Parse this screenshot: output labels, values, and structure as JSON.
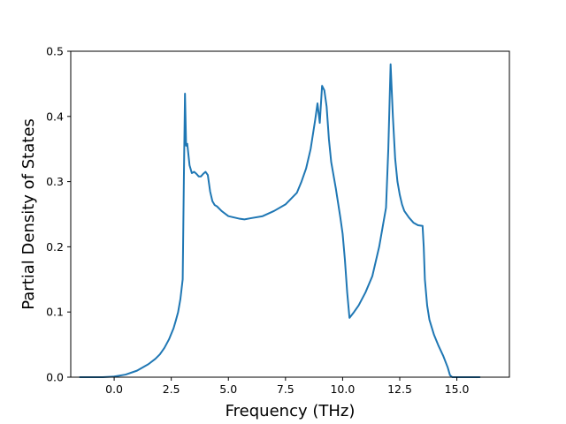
{
  "chart_data": {
    "type": "line",
    "title": "",
    "xlabel": "Frequency (THz)",
    "ylabel": "Partial Density of States",
    "xlim": [
      -1.9,
      17.3
    ],
    "ylim": [
      0,
      0.5
    ],
    "xticks": [
      0.0,
      2.5,
      5.0,
      7.5,
      10.0,
      12.5,
      15.0
    ],
    "xtick_labels": [
      "0.0",
      "2.5",
      "5.0",
      "7.5",
      "10.0",
      "12.5",
      "15.0"
    ],
    "yticks": [
      0.0,
      0.1,
      0.2,
      0.3,
      0.4,
      0.5
    ],
    "ytick_labels": [
      "0.0",
      "0.1",
      "0.2",
      "0.3",
      "0.4",
      "0.5"
    ],
    "grid": false,
    "legend": null,
    "colors": {
      "series": "#1f77b4",
      "axes": "#000000",
      "background": "#ffffff"
    },
    "series": [
      {
        "x": [
          -1.5,
          -1.0,
          -0.5,
          0.0,
          0.5,
          1.0,
          1.5,
          1.8,
          2.0,
          2.2,
          2.4,
          2.6,
          2.7,
          2.8,
          2.9,
          3.0,
          3.05,
          3.1,
          3.15,
          3.2,
          3.3,
          3.4,
          3.5,
          3.6,
          3.7,
          3.8,
          3.9,
          4.0,
          4.1,
          4.2,
          4.3,
          4.4,
          4.5,
          4.7,
          5.0,
          5.5,
          5.7,
          6.0,
          6.5,
          7.0,
          7.5,
          8.0,
          8.2,
          8.4,
          8.6,
          8.8,
          8.9,
          9.0,
          9.1,
          9.2,
          9.3,
          9.4,
          9.5,
          9.7,
          9.9,
          10.0,
          10.1,
          10.2,
          10.3,
          10.5,
          10.7,
          11.0,
          11.3,
          11.6,
          11.9,
          12.0,
          12.1,
          12.2,
          12.3,
          12.4,
          12.5,
          12.6,
          12.7,
          12.9,
          13.1,
          13.3,
          13.5,
          13.55,
          13.6,
          13.7,
          13.8,
          14.0,
          14.2,
          14.4,
          14.6,
          14.7,
          14.8,
          15.0,
          15.5,
          16.0
        ],
        "y": [
          0.0,
          0.0,
          0.0,
          0.001,
          0.004,
          0.01,
          0.02,
          0.028,
          0.035,
          0.045,
          0.058,
          0.075,
          0.087,
          0.1,
          0.12,
          0.15,
          0.3,
          0.435,
          0.355,
          0.358,
          0.325,
          0.313,
          0.315,
          0.312,
          0.308,
          0.308,
          0.312,
          0.315,
          0.31,
          0.285,
          0.27,
          0.264,
          0.262,
          0.255,
          0.247,
          0.243,
          0.242,
          0.244,
          0.247,
          0.255,
          0.265,
          0.283,
          0.3,
          0.32,
          0.35,
          0.395,
          0.42,
          0.39,
          0.447,
          0.44,
          0.415,
          0.365,
          0.33,
          0.29,
          0.245,
          0.22,
          0.18,
          0.13,
          0.091,
          0.1,
          0.11,
          0.13,
          0.155,
          0.2,
          0.26,
          0.35,
          0.48,
          0.4,
          0.335,
          0.3,
          0.28,
          0.265,
          0.255,
          0.245,
          0.237,
          0.233,
          0.232,
          0.2,
          0.15,
          0.11,
          0.088,
          0.065,
          0.048,
          0.033,
          0.015,
          0.003,
          0.0,
          0.0,
          0.0,
          0.0
        ]
      }
    ]
  }
}
